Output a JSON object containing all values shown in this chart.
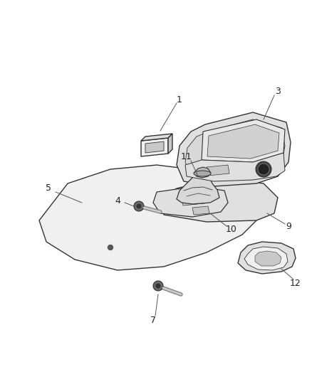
{
  "background_color": "#ffffff",
  "fig_width": 4.38,
  "fig_height": 5.33,
  "dpi": 100,
  "label_fontsize": 9,
  "line_color": "#333333",
  "face_light": "#f0f0f0",
  "face_mid": "#e0e0e0",
  "face_dark": "#c8c8c8",
  "edge_color": "#333333",
  "leader_color": "#555555"
}
